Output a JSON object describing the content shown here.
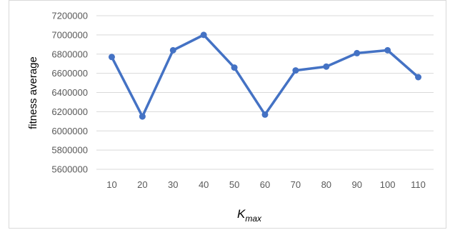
{
  "chart_data": {
    "type": "line",
    "title": "",
    "ylabel": "fitness average",
    "xlabel_main": "K",
    "xlabel_sub": "max",
    "categories": [
      "10",
      "20",
      "30",
      "40",
      "50",
      "60",
      "70",
      "80",
      "90",
      "100",
      "110"
    ],
    "series": [
      {
        "values": [
          6770000,
          6150000,
          6840000,
          7000000,
          6660000,
          6170000,
          6630000,
          6670000,
          6810000,
          6840000,
          6560000
        ]
      }
    ],
    "ylim": [
      5600000,
      7200000
    ],
    "yticks": [
      "7200000",
      "7000000",
      "6800000",
      "6600000",
      "6400000",
      "6200000",
      "6000000",
      "5800000",
      "5600000"
    ],
    "grid": true,
    "legend": "none",
    "colors": {
      "line": "#4472C4",
      "grid": "#d9d9d9"
    }
  }
}
